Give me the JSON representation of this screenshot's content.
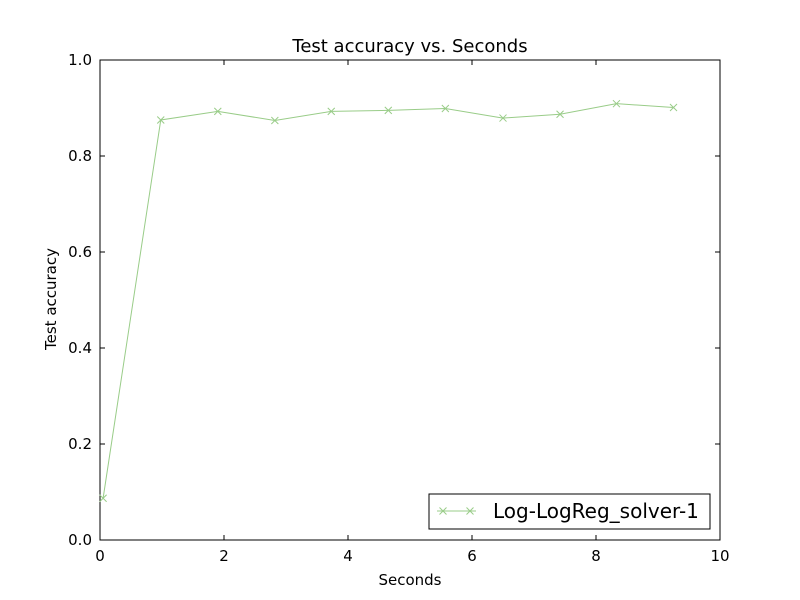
{
  "chart_data": {
    "type": "line",
    "title": "Test accuracy  vs. Seconds",
    "xlabel": "Seconds",
    "ylabel": "Test accuracy",
    "xlim": [
      0,
      10
    ],
    "ylim": [
      0.0,
      1.0
    ],
    "x_ticks": [
      "0",
      "2",
      "4",
      "6",
      "8",
      "10"
    ],
    "y_ticks": [
      "0.0",
      "0.2",
      "0.4",
      "0.6",
      "0.8",
      "1.0"
    ],
    "grid": false,
    "legend_position": "lower-right",
    "series": [
      {
        "name": "Log-LogReg_solver-1",
        "color": "#99cc88",
        "marker": "x",
        "x": [
          0.05,
          0.98,
          1.9,
          2.82,
          3.73,
          4.65,
          5.57,
          6.5,
          7.42,
          8.33,
          9.25
        ],
        "y": [
          0.087,
          0.875,
          0.893,
          0.874,
          0.893,
          0.895,
          0.899,
          0.879,
          0.887,
          0.909,
          0.901
        ]
      }
    ]
  }
}
